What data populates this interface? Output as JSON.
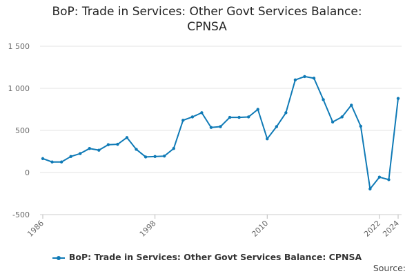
{
  "chart_data": {
    "type": "line",
    "title_lines": [
      "BoP: Trade in Services: Other Govt Services Balance:",
      "CPNSA"
    ],
    "xlabel": "",
    "ylabel": "",
    "x_tick_labels": [
      "1986",
      "1998",
      "2010",
      "2022",
      "2024"
    ],
    "x_ticks": [
      1986,
      1998,
      2010,
      2022,
      2024
    ],
    "xlim": [
      1986,
      2024
    ],
    "y_tick_labels": [
      "1 500",
      "1 000",
      "500",
      "0",
      "-500"
    ],
    "y_ticks": [
      1500,
      1000,
      500,
      0,
      -500
    ],
    "ylim": [
      -500,
      1500
    ],
    "grid": "horizontal",
    "legend_position": "bottom",
    "series": [
      {
        "name": "BoP: Trade in Services: Other Govt Services Balance: CPNSA",
        "color": "#0f7ab6",
        "x": [
          1986,
          1987,
          1988,
          1989,
          1990,
          1991,
          1992,
          1993,
          1994,
          1995,
          1996,
          1997,
          1998,
          1999,
          2000,
          2001,
          2002,
          2003,
          2004,
          2005,
          2006,
          2007,
          2008,
          2009,
          2010,
          2011,
          2012,
          2013,
          2014,
          2015,
          2016,
          2017,
          2018,
          2019,
          2020,
          2021,
          2022,
          2023,
          2024
        ],
        "values": [
          165,
          125,
          125,
          190,
          225,
          285,
          265,
          330,
          335,
          415,
          275,
          185,
          190,
          195,
          285,
          620,
          660,
          710,
          535,
          545,
          655,
          655,
          660,
          750,
          400,
          545,
          710,
          1100,
          1140,
          1120,
          865,
          600,
          660,
          800,
          550,
          -195,
          -55,
          -85,
          880
        ]
      }
    ]
  },
  "legend": {
    "label": "BoP: Trade in Services: Other Govt Services Balance: CPNSA"
  },
  "source": {
    "label": "Source:"
  }
}
